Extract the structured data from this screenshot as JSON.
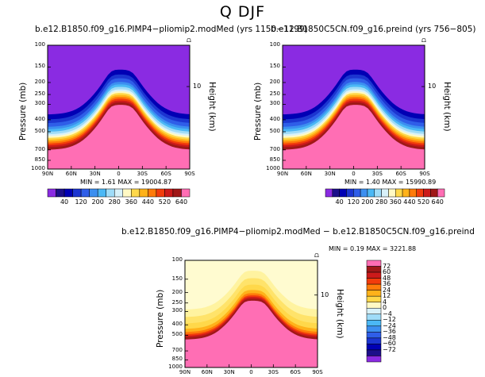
{
  "figure": {
    "title": "Q DJF",
    "panel_left_title": "b.e12.B1850.f09_g16.PIMP4−pliomip2.modMed (yrs 1150−1199)",
    "panel_right_title": "b.e12.B1850C5CN.f09_g16.preind (yrs 756−805)",
    "panel_diff_title": "b.e12.B1850.f09_g16.PIMP4−pliomip2.modMed − b.e12.B1850C5CN.f09_g16.preind",
    "ylabel": "Pressure (mb)",
    "right_label": "Height (km)",
    "height_tick": "10",
    "stats_left": "MIN =     1.61   MAX = 19004.87",
    "stats_right": "MIN =     1.40   MAX = 15990.89",
    "stats_diff": "MIN =    0.19   MAX = 3221.88",
    "colors": {
      "background": "#ffffff",
      "frame": "#000000"
    }
  },
  "chart_data": [
    {
      "type": "heatmap",
      "title": "b.e12.B1850.f09_g16.PIMP4−pliomip2.modMed (yrs 1150−1199)",
      "xlabel": "",
      "ylabel": "Pressure (mb)",
      "x_ticks": [
        "90N",
        "60N",
        "30N",
        "0",
        "30S",
        "60S",
        "90S"
      ],
      "y_ticks": [
        100,
        150,
        200,
        250,
        300,
        400,
        500,
        700,
        850,
        1000
      ],
      "ylim": [
        1000,
        100
      ],
      "y_scale": "log",
      "stats": {
        "min": 1.61,
        "max": 19004.87
      },
      "contour_levels": [
        40,
        80,
        120,
        160,
        200,
        240,
        280,
        320,
        360,
        400,
        440,
        480,
        520,
        560,
        600,
        640
      ],
      "colorbar_labels": [
        "40",
        "120",
        "200",
        "280",
        "360",
        "440",
        "520",
        "640"
      ],
      "colors": [
        "#8a2be2",
        "#1c0f8a",
        "#0000b4",
        "#1c35d0",
        "#2f5ee8",
        "#3c8ff0",
        "#4bb8f5",
        "#9fdcf8",
        "#d8f1f9",
        "#fff9c4",
        "#ffd84a",
        "#ffb21a",
        "#ff7b0a",
        "#f23c0c",
        "#cc1a1a",
        "#a01818",
        "#ff6eb4"
      ]
    },
    {
      "type": "heatmap",
      "title": "b.e12.B1850C5CN.f09_g16.preind (yrs 756−805)",
      "xlabel": "",
      "ylabel": "Pressure (mb)",
      "x_ticks": [
        "90N",
        "60N",
        "30N",
        "0",
        "30S",
        "60S",
        "90S"
      ],
      "y_ticks": [
        100,
        150,
        200,
        250,
        300,
        400,
        500,
        700,
        850,
        1000
      ],
      "ylim": [
        1000,
        100
      ],
      "y_scale": "log",
      "stats": {
        "min": 1.4,
        "max": 15990.89
      },
      "contour_levels": [
        40,
        80,
        120,
        160,
        200,
        240,
        280,
        320,
        360,
        400,
        440,
        480,
        520,
        560,
        600,
        640
      ],
      "colorbar_labels": [
        "40",
        "120",
        "200",
        "280",
        "360",
        "440",
        "520",
        "640"
      ]
    },
    {
      "type": "heatmap",
      "title": "b.e12.B1850.f09_g16.PIMP4−pliomip2.modMed − b.e12.B1850C5CN.f09_g16.preind",
      "xlabel": "",
      "ylabel": "Pressure (mb)",
      "x_ticks": [
        "90N",
        "60N",
        "30N",
        "0",
        "30S",
        "60S",
        "90S"
      ],
      "y_ticks": [
        100,
        150,
        200,
        250,
        300,
        400,
        500,
        700,
        850,
        1000
      ],
      "ylim": [
        1000,
        100
      ],
      "y_scale": "log",
      "stats": {
        "min": 0.19,
        "max": 3221.88
      },
      "contour_levels": [
        -72,
        -60,
        -48,
        -36,
        -24,
        -12,
        -4,
        0,
        4,
        12,
        24,
        36,
        48,
        60,
        72
      ],
      "colorbar_labels": [
        "72",
        "60",
        "48",
        "36",
        "24",
        "12",
        "4",
        "0",
        "−4",
        "−12",
        "−24",
        "−36",
        "−48",
        "−60",
        "−72"
      ],
      "colors": [
        "#ff6eb4",
        "#a01818",
        "#cc1a1a",
        "#f23c0c",
        "#ff7b0a",
        "#ffb21a",
        "#ffd84a",
        "#fff9c4",
        "#d8f1f9",
        "#9fdcf8",
        "#4bb8f5",
        "#3c8ff0",
        "#2f5ee8",
        "#1c35d0",
        "#0000b4",
        "#1c0f8a",
        "#8a2be2"
      ]
    }
  ]
}
